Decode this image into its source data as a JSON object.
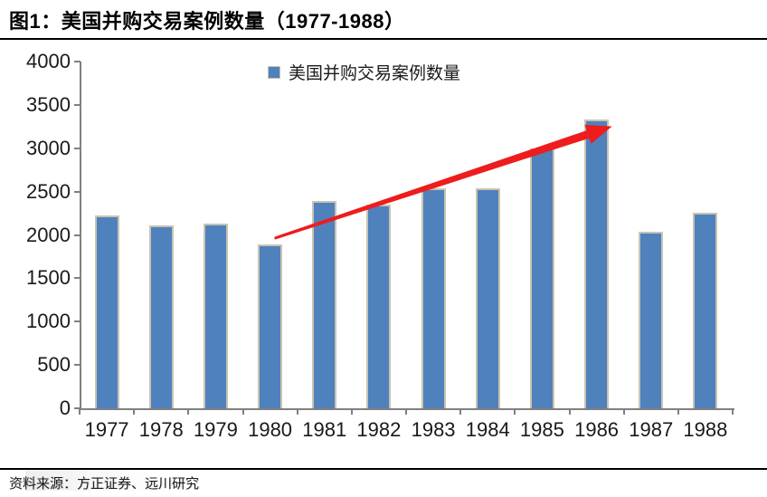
{
  "header": {
    "title": "图1：美国并购交易案例数量（1977-1988）"
  },
  "legend": {
    "label": "美国并购交易案例数量",
    "marker": "blue-square",
    "marker_color": "#4f81bd"
  },
  "footer": {
    "source": "资料来源：方正证券、远川研究"
  },
  "colors": {
    "bar_fill": "#4f81bd",
    "bar_border": "#c9c3b1",
    "axis": "#808080",
    "arrow": "#ee1c1c",
    "text": "#1a1a1a",
    "rule": "#000000"
  },
  "chart_data": {
    "type": "bar",
    "title": "美国并购交易案例数量",
    "categories": [
      "1977",
      "1978",
      "1979",
      "1980",
      "1981",
      "1982",
      "1983",
      "1984",
      "1985",
      "1986",
      "1987",
      "1988"
    ],
    "values": [
      2224,
      2106,
      2128,
      1889,
      2395,
      2346,
      2533,
      2543,
      3001,
      3336,
      2032,
      2258
    ],
    "xlabel": "",
    "ylabel": "",
    "ylim": [
      0,
      4000
    ],
    "y_tick_step": 500,
    "y_tick_labels": [
      "0",
      "500",
      "1000",
      "1500",
      "2000",
      "2500",
      "3000",
      "3500",
      "4000"
    ],
    "grid": false,
    "legend_position": "top-center",
    "annotations": [
      {
        "type": "arrow",
        "from_category": "1980",
        "to_category": "1986",
        "color": "#ee1c1c",
        "note": "red upward trend arrow from 1980 bar top to 1986 bar top"
      }
    ]
  }
}
